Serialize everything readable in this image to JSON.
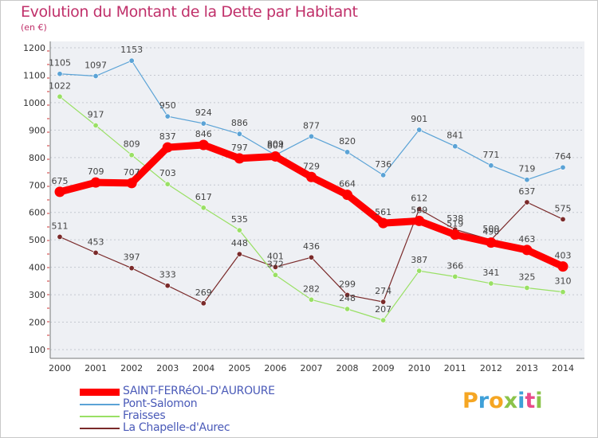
{
  "header": {
    "title": "Evolution du Montant de la Dette par Habitant",
    "subtitle": "(en €)"
  },
  "chart_data": {
    "type": "line",
    "title": "Evolution du Montant de la Dette par Habitant",
    "ylabel": "(en €)",
    "xlabel": "",
    "x": [
      "2000",
      "2001",
      "2002",
      "2003",
      "2004",
      "2005",
      "2006",
      "2007",
      "2008",
      "2009",
      "2010",
      "2011",
      "2012",
      "2013",
      "2014"
    ],
    "ylim": [
      100,
      1200
    ],
    "yticks": [
      100,
      200,
      300,
      400,
      500,
      600,
      700,
      800,
      900,
      1000,
      1100,
      1200
    ],
    "grid": "horizontal dashed",
    "legend": "bottom-left",
    "series": [
      {
        "name": "SAINT-FERRéOL-D'AUROURE",
        "color": "#ff0000",
        "emphasis": true,
        "values": [
          675,
          709,
          707,
          837,
          846,
          797,
          804,
          729,
          664,
          561,
          569,
          519,
          490,
          463,
          403
        ]
      },
      {
        "name": "Pont-Salomon",
        "color": "#5ba3d6",
        "values": [
          1105,
          1097,
          1153,
          950,
          924,
          886,
          809,
          877,
          820,
          736,
          901,
          841,
          771,
          719,
          764
        ]
      },
      {
        "name": "Fraisses",
        "color": "#99e064",
        "values": [
          1022,
          917,
          809,
          703,
          617,
          535,
          372,
          282,
          248,
          207,
          387,
          366,
          341,
          325,
          310
        ]
      },
      {
        "name": "La Chapelle-d'Aurec",
        "color": "#7a2a2a",
        "values": [
          511,
          453,
          397,
          333,
          269,
          448,
          401,
          436,
          299,
          274,
          612,
          538,
          500,
          637,
          575
        ]
      }
    ]
  },
  "logo": {
    "letters": [
      "P",
      "r",
      "o",
      "x",
      "i",
      "t",
      "i"
    ],
    "colors": [
      "#f5a623",
      "#3fa0d8",
      "#f5a623",
      "#8bc34a",
      "#3fa0d8",
      "#e94b8a",
      "#8bc34a"
    ]
  }
}
